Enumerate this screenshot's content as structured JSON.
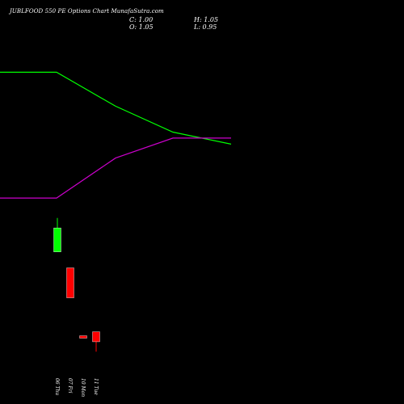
{
  "header": {
    "title": "JUBLFOOD 550 PE Options  Chart MunafaSutra.com",
    "close": "C: 1.00",
    "open": "O: 1.05",
    "high": "H: 1.05",
    "low": "L: 0.95"
  },
  "chart_data": {
    "type": "candlestick",
    "title": "JUBLFOOD 550 PE Options  Chart MunafaSutra.com",
    "candles": [
      {
        "label": "06 Thu",
        "open": 1.45,
        "high": 1.62,
        "low": 1.45,
        "close": 1.57,
        "color": "#00ff00"
      },
      {
        "label": "07 Fri",
        "open": 1.37,
        "high": 1.37,
        "low": 1.22,
        "close": 1.22,
        "color": "#ff0000"
      },
      {
        "label": "10 Mon",
        "open": 1.03,
        "high": 1.03,
        "low": 1.02,
        "close": 1.02,
        "color": "#ff0000"
      },
      {
        "label": "11 Tue",
        "open": 1.05,
        "high": 1.05,
        "low": 0.95,
        "close": 1.0,
        "color": "#ff0000"
      }
    ],
    "lines": [
      {
        "color": "#00ff00",
        "values": [
          2.35,
          2.35,
          2.18,
          2.05,
          1.99
        ]
      },
      {
        "color": "#cc00cc",
        "values": [
          1.72,
          1.72,
          1.92,
          2.02,
          2.02
        ]
      }
    ],
    "ylim": [
      0.85,
      2.55
    ]
  }
}
